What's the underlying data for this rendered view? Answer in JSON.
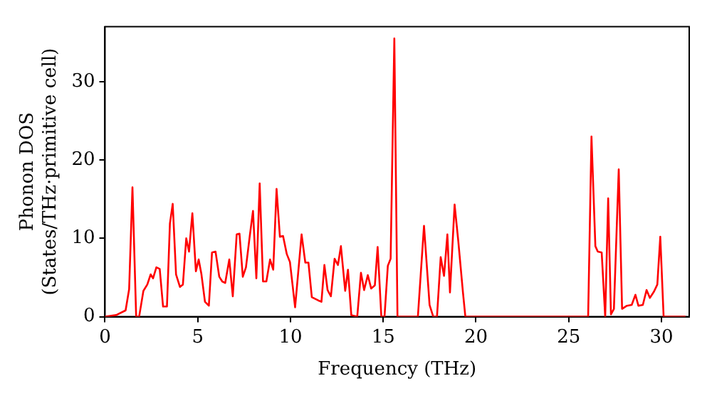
{
  "chart_data": {
    "type": "line",
    "xlabel": "Frequency (THz)",
    "ylabel": "Phonon DOS\n(States/THz·primitive cell)",
    "xlim": [
      0,
      31.5
    ],
    "ylim": [
      0,
      37
    ],
    "xticks": [
      0,
      5,
      10,
      15,
      20,
      25,
      30
    ],
    "yticks": [
      0,
      10,
      20,
      30
    ],
    "grid": false,
    "legend": false,
    "marker": "none",
    "line_style": "solid",
    "series": [
      {
        "color": "#ff0000",
        "x": [
          0,
          0.6,
          1.11,
          1.3,
          1.48,
          1.68,
          1.84,
          2.07,
          2.28,
          2.46,
          2.59,
          2.77,
          2.95,
          3.13,
          3.34,
          3.5,
          3.65,
          3.83,
          4.04,
          4.2,
          4.38,
          4.53,
          4.71,
          4.9,
          5.05,
          5.2,
          5.39,
          5.6,
          5.77,
          5.96,
          6.16,
          6.32,
          6.48,
          6.7,
          6.89,
          7.1,
          7.25,
          7.43,
          7.6,
          7.8,
          7.98,
          8.16,
          8.34,
          8.52,
          8.7,
          8.9,
          9.07,
          9.25,
          9.43,
          9.6,
          9.8,
          9.97,
          10.25,
          10.6,
          10.8,
          10.97,
          11.15,
          11.48,
          11.67,
          11.83,
          12.0,
          12.18,
          12.38,
          12.56,
          12.72,
          12.95,
          13.1,
          13.28,
          13.6,
          13.8,
          13.97,
          14.17,
          14.35,
          14.55,
          14.7,
          14.9,
          15.07,
          15.25,
          15.4,
          15.6,
          15.77,
          16.87,
          17.2,
          17.5,
          17.7,
          17.9,
          18.1,
          18.28,
          18.46,
          18.6,
          18.85,
          19.05,
          19.3,
          19.43,
          26.05,
          26.23,
          26.44,
          26.57,
          26.78,
          26.97,
          27.13,
          27.28,
          27.44,
          27.7,
          27.88,
          28.14,
          28.4,
          28.6,
          28.76,
          29.0,
          29.2,
          29.38,
          29.6,
          29.78,
          29.94,
          30.12,
          31.3
        ],
        "values": [
          0,
          0.2,
          0.8,
          3.5,
          16.5,
          0,
          0,
          3.3,
          4.1,
          5.4,
          4.9,
          6.3,
          6.1,
          1.3,
          1.3,
          11.9,
          14.4,
          5.4,
          3.8,
          4.1,
          10,
          8.3,
          13.2,
          5.8,
          7.3,
          5.4,
          1.9,
          1.4,
          8.2,
          8.3,
          5.1,
          4.5,
          4.3,
          7.3,
          2.6,
          10.5,
          10.6,
          5.1,
          6.3,
          10.2,
          13.5,
          4.9,
          17,
          4.5,
          4.5,
          7.3,
          6,
          16.3,
          10.2,
          10.3,
          8,
          7,
          1.2,
          10.5,
          6.9,
          6.9,
          2.5,
          2.1,
          1.9,
          6.6,
          3.4,
          2.6,
          7.4,
          6.6,
          9,
          3.3,
          6,
          0.2,
          0,
          5.6,
          3.4,
          5.3,
          3.6,
          4,
          8.9,
          0,
          0,
          6.5,
          7.4,
          35.5,
          0,
          0,
          11.6,
          1.5,
          0,
          0,
          7.6,
          5.2,
          10.5,
          3.1,
          14.3,
          9.6,
          3.1,
          0,
          0,
          23,
          9,
          8.3,
          8.2,
          0,
          15.1,
          0.3,
          1,
          18.8,
          1,
          1.4,
          1.5,
          2.8,
          1.4,
          1.5,
          3.4,
          2.4,
          3.2,
          4.1,
          10.2,
          0,
          0
        ]
      }
    ]
  }
}
